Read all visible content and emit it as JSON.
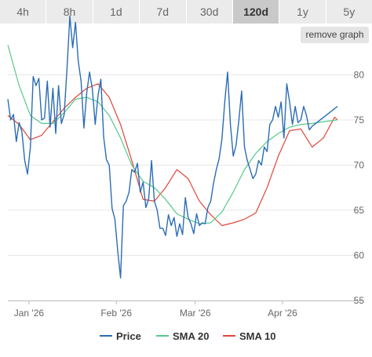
{
  "range_tabs": [
    {
      "label": "4h"
    },
    {
      "label": "8h"
    },
    {
      "label": "1d"
    },
    {
      "label": "7d"
    },
    {
      "label": "30d"
    },
    {
      "label": "120d",
      "active": true
    },
    {
      "label": "1y"
    },
    {
      "label": "5y"
    }
  ],
  "remove_graph_label": "remove graph",
  "colors": {
    "price": "#2b6cb5",
    "sma20": "#55c98a",
    "sma10": "#e0453a",
    "grid": "#e6e6e6"
  },
  "chart_data": {
    "type": "line",
    "xlabel": "",
    "ylabel": "",
    "x_ticks": [
      {
        "label": "Jan '26",
        "value": 7.5
      },
      {
        "label": "Feb '26",
        "value": 38.5
      },
      {
        "label": "Mar '26",
        "value": 66.5
      },
      {
        "label": "Apr '26",
        "value": 97.5
      }
    ],
    "y_ticks": [
      55,
      60,
      65,
      70,
      75,
      80
    ],
    "ylim": [
      55,
      83.5
    ],
    "xlim": [
      0,
      117
    ],
    "grid": "horizontal",
    "legend_position": "bottom",
    "series": [
      {
        "name": "Price",
        "color_key": "price",
        "values": [
          77.3,
          75.0,
          75.6,
          72.6,
          74.7,
          73.7,
          70.5,
          69.0,
          72.0,
          79.8,
          78.8,
          79.6,
          75.0,
          75.2,
          79.3,
          74.2,
          78.5,
          73.5,
          78.8,
          74.6,
          75.6,
          80.7,
          86.5,
          83.0,
          85.8,
          81.5,
          79.3,
          74.1,
          78.0,
          80.3,
          78.4,
          74.5,
          77.7,
          79.5,
          73.1,
          70.6,
          70.0,
          65.2,
          64.0,
          60.5,
          57.5,
          65.5,
          66.0,
          67.0,
          69.5,
          69.2,
          70.2,
          67.0,
          68.1,
          65.3,
          66.3,
          70.5,
          66.0,
          65.0,
          63.0,
          63.0,
          62.2,
          64.5,
          63.3,
          64.2,
          62.1,
          63.5,
          62.3,
          66.4,
          64.2,
          63.5,
          62.4,
          64.6,
          63.3,
          63.6,
          63.5,
          65.3,
          66.0,
          68.0,
          69.5,
          70.7,
          72.9,
          77.0,
          80.3,
          74.5,
          71.0,
          72.2,
          75.0,
          78.2,
          72.0,
          70.5,
          69.5,
          68.5,
          69.0,
          70.5,
          70.0,
          72.0,
          71.5,
          74.5,
          75.0,
          76.5,
          75.3,
          77.0,
          73.0,
          79.0,
          77.0,
          74.5,
          76.5,
          74.7,
          75.0,
          76.5,
          75.5,
          73.9,
          74.3,
          76.5
        ],
        "x": [
          0,
          1,
          2,
          3,
          4,
          5,
          6,
          7,
          8,
          9,
          10,
          11,
          12,
          13,
          14,
          15,
          16,
          17,
          18,
          19,
          20,
          21,
          22,
          23,
          24,
          25,
          26,
          27,
          28,
          29,
          30,
          31,
          32,
          33,
          34,
          35,
          36,
          37,
          38,
          39,
          40,
          41,
          42,
          43,
          44,
          45,
          46,
          47,
          48,
          49,
          50,
          51,
          52,
          53,
          54,
          55,
          56,
          57,
          58,
          59,
          60,
          61,
          62,
          63,
          64,
          65,
          66,
          67,
          68,
          69,
          70,
          71,
          72,
          73,
          74,
          75,
          76,
          77,
          78,
          79,
          80,
          81,
          82,
          83,
          84,
          85,
          86,
          87,
          88,
          89,
          90,
          91,
          92,
          93,
          94,
          95,
          96,
          97,
          98,
          99,
          100,
          101,
          102,
          103,
          104,
          105,
          106,
          107,
          108,
          117
        ]
      },
      {
        "name": "SMA 20",
        "color_key": "sma20",
        "points": [
          [
            0,
            83.3
          ],
          [
            4,
            78.8
          ],
          [
            8,
            75.5
          ],
          [
            12,
            74.6
          ],
          [
            16,
            74.6
          ],
          [
            20,
            75.8
          ],
          [
            24,
            77.3
          ],
          [
            28,
            77.5
          ],
          [
            32,
            77.0
          ],
          [
            36,
            75.5
          ],
          [
            40,
            73.0
          ],
          [
            44,
            70.0
          ],
          [
            48,
            68.2
          ],
          [
            52,
            67.5
          ],
          [
            56,
            66.2
          ],
          [
            60,
            64.6
          ],
          [
            64,
            64.0
          ],
          [
            68,
            63.5
          ],
          [
            72,
            63.6
          ],
          [
            76,
            64.8
          ],
          [
            80,
            67.0
          ],
          [
            84,
            69.5
          ],
          [
            88,
            71.3
          ],
          [
            92,
            72.6
          ],
          [
            96,
            73.5
          ],
          [
            100,
            74.2
          ],
          [
            104,
            74.5
          ],
          [
            108,
            74.6
          ],
          [
            112,
            74.8
          ],
          [
            117,
            75.0
          ]
        ]
      },
      {
        "name": "SMA 10",
        "color_key": "sma10",
        "points": [
          [
            0,
            75.5
          ],
          [
            4,
            74.5
          ],
          [
            8,
            72.8
          ],
          [
            12,
            73.3
          ],
          [
            16,
            74.8
          ],
          [
            20,
            76.3
          ],
          [
            24,
            77.5
          ],
          [
            28,
            78.5
          ],
          [
            32,
            79.0
          ],
          [
            36,
            77.5
          ],
          [
            40,
            74.5
          ],
          [
            44,
            70.5
          ],
          [
            48,
            66.2
          ],
          [
            52,
            66.0
          ],
          [
            56,
            67.5
          ],
          [
            60,
            69.5
          ],
          [
            64,
            68.5
          ],
          [
            68,
            66.0
          ],
          [
            72,
            64.5
          ],
          [
            76,
            63.3
          ],
          [
            80,
            63.6
          ],
          [
            84,
            64.0
          ],
          [
            88,
            64.7
          ],
          [
            92,
            67.5
          ],
          [
            96,
            71.0
          ],
          [
            100,
            73.8
          ],
          [
            104,
            74.0
          ],
          [
            108,
            72.0
          ],
          [
            112,
            73.0
          ],
          [
            116,
            75.3
          ],
          [
            117,
            75.0
          ]
        ]
      }
    ]
  }
}
